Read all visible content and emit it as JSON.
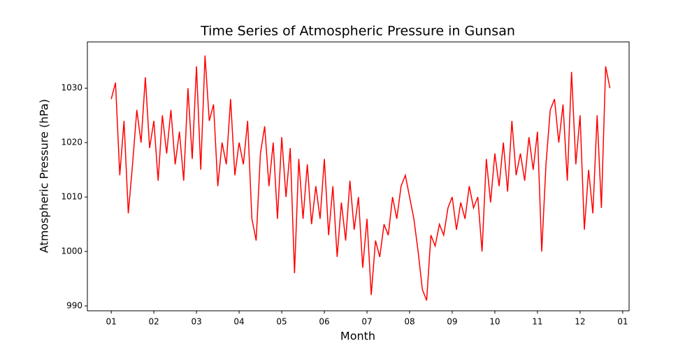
{
  "chart_data": {
    "type": "line",
    "title": "Time Series of Atmospheric Pressure in Gunsan",
    "x_label": "Month",
    "y_label": "Atmospheric Pressure (hPa)",
    "x": [
      0,
      0.1,
      0.2,
      0.3,
      0.4,
      0.5,
      0.6,
      0.7,
      0.8,
      0.9,
      1,
      1.1,
      1.2,
      1.3,
      1.4,
      1.5,
      1.6,
      1.7,
      1.8,
      1.9,
      2,
      2.1,
      2.2,
      2.3,
      2.4,
      2.5,
      2.6,
      2.7,
      2.8,
      2.9,
      3,
      3.1,
      3.2,
      3.3,
      3.4,
      3.5,
      3.6,
      3.7,
      3.8,
      3.9,
      4,
      4.1,
      4.2,
      4.3,
      4.4,
      4.5,
      4.6,
      4.7,
      4.8,
      4.9,
      5,
      5.1,
      5.2,
      5.3,
      5.4,
      5.5,
      5.6,
      5.7,
      5.8,
      5.9,
      6,
      6.1,
      6.2,
      6.3,
      6.4,
      6.5,
      6.6,
      6.7,
      6.8,
      6.9,
      7,
      7.1,
      7.2,
      7.3,
      7.4,
      7.5,
      7.6,
      7.7,
      7.8,
      7.9,
      8,
      8.1,
      8.2,
      8.3,
      8.4,
      8.5,
      8.6,
      8.7,
      8.8,
      8.9,
      9,
      9.1,
      9.2,
      9.3,
      9.4,
      9.5,
      9.6,
      9.7,
      9.8,
      9.9,
      10,
      10.1,
      10.2,
      10.3,
      10.4,
      10.5,
      10.6,
      10.7,
      10.8,
      10.9,
      11,
      11.1,
      11.2,
      11.3,
      11.4,
      11.5,
      11.6,
      11.7
    ],
    "series": [
      {
        "name": "Atmospheric Pressure",
        "color": "#ff0000",
        "values": [
          1028,
          1031,
          1014,
          1024,
          1007,
          1016,
          1026,
          1020,
          1032,
          1019,
          1024,
          1013,
          1025,
          1018,
          1026,
          1016,
          1022,
          1013,
          1030,
          1017,
          1034,
          1015,
          1036,
          1024,
          1027,
          1012,
          1020,
          1016,
          1028,
          1014,
          1020,
          1016,
          1024,
          1006,
          1002,
          1018,
          1023,
          1012,
          1020,
          1006,
          1021,
          1010,
          1019,
          996,
          1017,
          1006,
          1016,
          1005,
          1012,
          1006,
          1017,
          1003,
          1012,
          999,
          1009,
          1002,
          1013,
          1004,
          1010,
          997,
          1006,
          992,
          1002,
          999,
          1005,
          1003,
          1010,
          1006,
          1012,
          1014,
          1010,
          1006,
          1000,
          993,
          991,
          1003,
          1001,
          1005,
          1003,
          1008,
          1010,
          1004,
          1009,
          1006,
          1012,
          1008,
          1010,
          1000,
          1017,
          1009,
          1018,
          1012,
          1020,
          1011,
          1024,
          1014,
          1018,
          1013,
          1021,
          1015,
          1022,
          1000,
          1016,
          1026,
          1028,
          1020,
          1027,
          1013,
          1033,
          1016,
          1025,
          1004,
          1015,
          1007,
          1025,
          1008,
          1034,
          1030
        ]
      }
    ],
    "xlim": [
      -0.56,
      12.15
    ],
    "xticks": [
      {
        "value": 0,
        "label": "01"
      },
      {
        "value": 1,
        "label": "02"
      },
      {
        "value": 2,
        "label": "03"
      },
      {
        "value": 3,
        "label": "04"
      },
      {
        "value": 4,
        "label": "05"
      },
      {
        "value": 5,
        "label": "06"
      },
      {
        "value": 6,
        "label": "07"
      },
      {
        "value": 7,
        "label": "08"
      },
      {
        "value": 8,
        "label": "09"
      },
      {
        "value": 9,
        "label": "10"
      },
      {
        "value": 10,
        "label": "11"
      },
      {
        "value": 11,
        "label": "12"
      },
      {
        "value": 12,
        "label": "01"
      }
    ],
    "ylim": [
      989.1,
      1038.5
    ],
    "yticks": [
      990,
      1000,
      1010,
      1020,
      1030
    ],
    "grid": false
  }
}
